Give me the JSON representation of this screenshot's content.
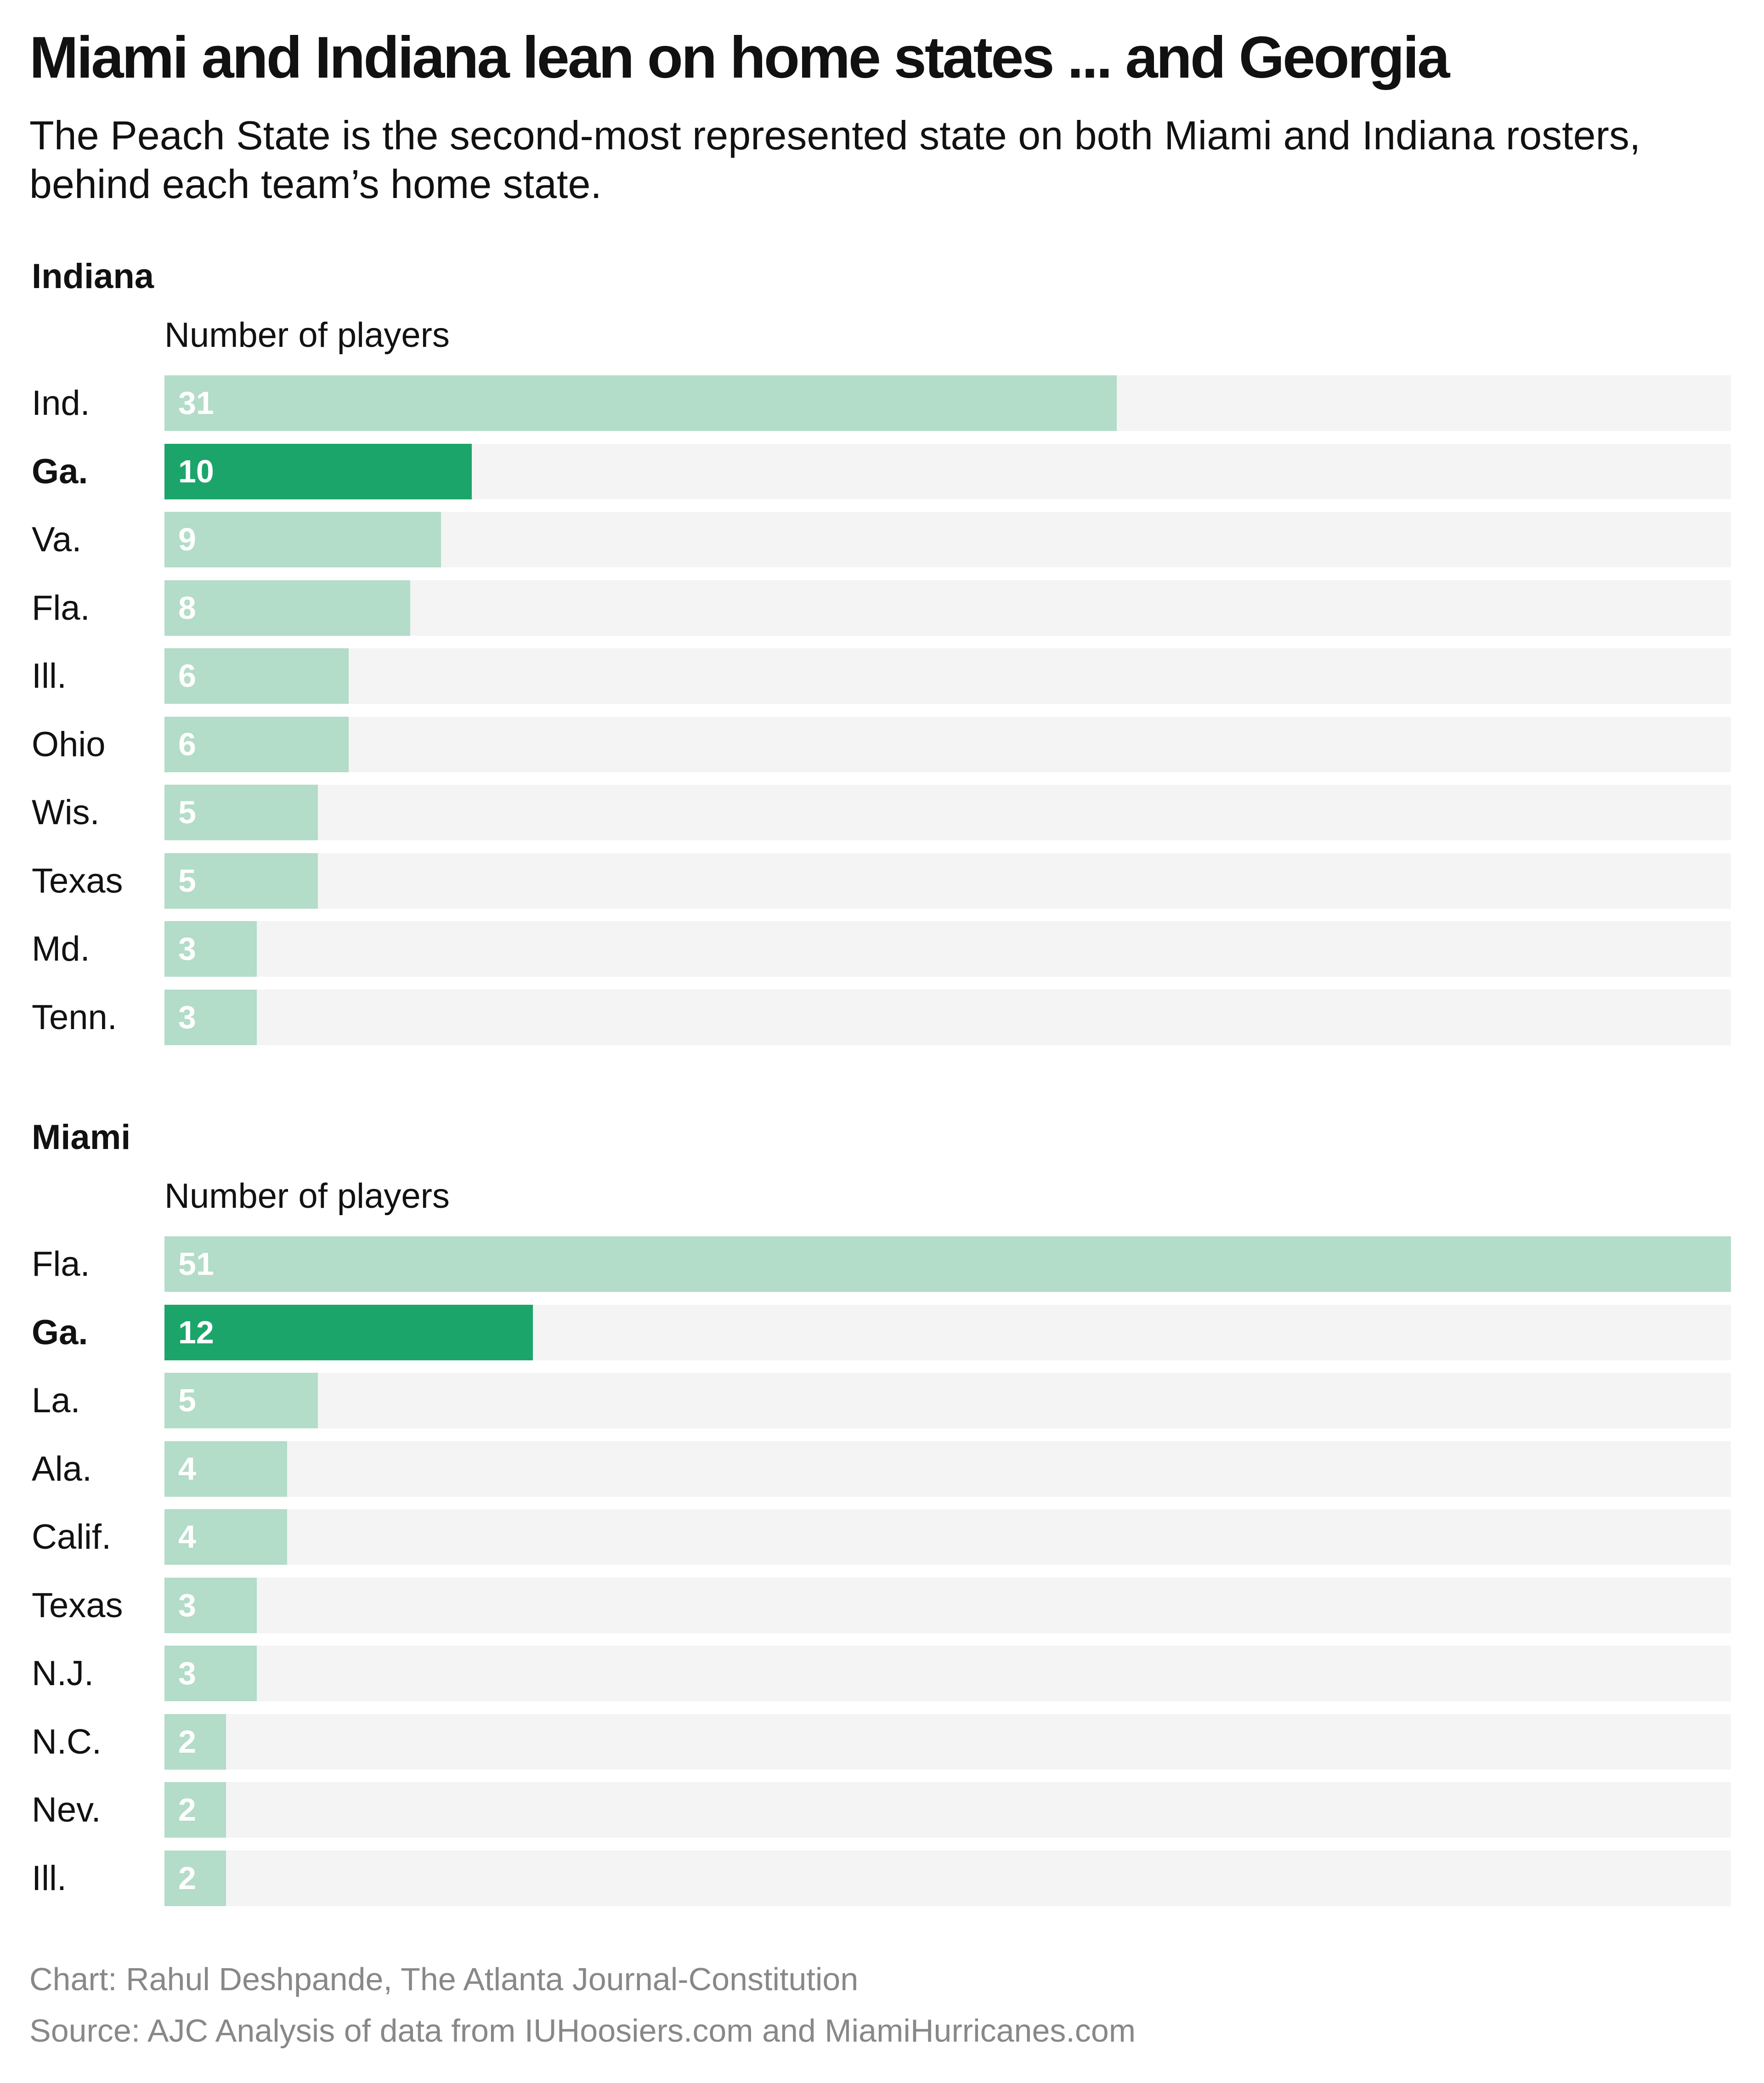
{
  "title": "Miami and Indiana lean on home states ... and Georgia",
  "subtitle": "The Peach State is the second-most represented state on both Miami and Indiana rosters, behind each team’s home state.",
  "colors": {
    "bar": "#b3dcc9",
    "highlight": "#1ba56a",
    "track": "#f4f4f4"
  },
  "chart_data": [
    {
      "type": "bar",
      "title": "Indiana",
      "xlabel": "Number of players",
      "xlim": [
        0,
        51
      ],
      "categories": [
        "Ind.",
        "Ga.",
        "Va.",
        "Fla.",
        "Ill.",
        "Ohio",
        "Wis.",
        "Texas",
        "Md.",
        "Tenn."
      ],
      "values": [
        31,
        10,
        9,
        8,
        6,
        6,
        5,
        5,
        3,
        3
      ],
      "highlight": "Ga."
    },
    {
      "type": "bar",
      "title": "Miami",
      "xlabel": "Number of players",
      "xlim": [
        0,
        51
      ],
      "categories": [
        "Fla.",
        "Ga.",
        "La.",
        "Ala.",
        "Calif.",
        "Texas",
        "N.J.",
        "N.C.",
        "Nev.",
        "Ill."
      ],
      "values": [
        51,
        12,
        5,
        4,
        4,
        3,
        3,
        2,
        2,
        2
      ],
      "highlight": "Ga."
    }
  ],
  "footer": {
    "credit": "Chart: Rahul Deshpande, The Atlanta Journal-Constitution",
    "source": "Source: AJC Analysis of data from IUHoosiers.com and MiamiHurricanes.com"
  }
}
